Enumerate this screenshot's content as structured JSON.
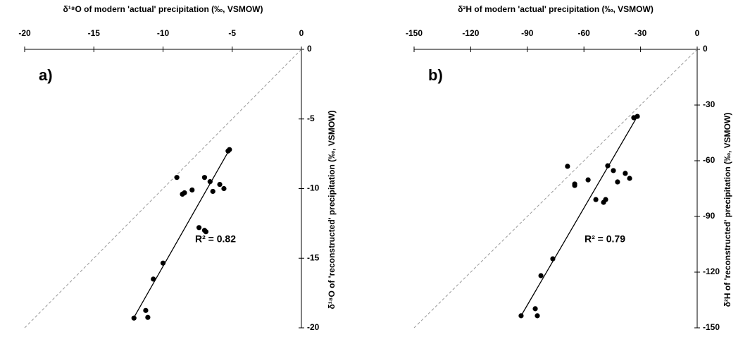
{
  "chart_data": [
    {
      "type": "scatter",
      "panel": "a)",
      "xlabel": "δ¹⁸O of  modern 'actual' precipitation (‰, VSMOW)",
      "ylabel": "δ¹⁸O of 'reconstructed' precipitation (‰, VSMOW)",
      "annotation": "R² = 0.82",
      "xlim": [
        -20,
        0
      ],
      "xticks": [
        -20,
        -15,
        -10,
        -5,
        0
      ],
      "ylim": [
        -20,
        0
      ],
      "yticks": [
        0,
        -5,
        -10,
        -15,
        -20
      ],
      "color": "#000000",
      "one_to_one_line": true,
      "x": [
        -12.1,
        -11.25,
        -11.1,
        -10.7,
        -10.0,
        -9.0,
        -8.6,
        -8.45,
        -7.9,
        -7.4,
        -7.0,
        -6.9,
        -7.0,
        -6.6,
        -6.4,
        -5.9,
        -5.6,
        -5.3,
        -5.2
      ],
      "values": [
        -19.3,
        -18.75,
        -19.25,
        -16.5,
        -15.35,
        -9.2,
        -10.4,
        -10.3,
        -10.1,
        -12.8,
        -13.0,
        -13.1,
        -9.2,
        -9.5,
        -10.2,
        -9.7,
        -10.0,
        -7.3,
        -7.2
      ],
      "fit_line": {
        "x": [
          -12.1,
          -5.2
        ],
        "y": [
          -19.25,
          -7.2
        ]
      }
    },
    {
      "type": "scatter",
      "panel": "b)",
      "xlabel": "δ²H of modern 'actual' precipitation (‰, VSMOW)",
      "ylabel": "δ²H of 'reconstructed' precipitation (‰, VSMOW)",
      "annotation": "R² = 0.79",
      "xlim": [
        -150,
        0
      ],
      "xticks": [
        -150,
        -120,
        -90,
        -60,
        -30,
        0
      ],
      "ylim": [
        -150,
        0
      ],
      "yticks": [
        0,
        -30,
        -60,
        -90,
        -120,
        -150
      ],
      "color": "#000000",
      "one_to_one_line": true,
      "x": [
        -93.3,
        -85.8,
        -84.7,
        -82.8,
        -76.5,
        -68.7,
        -64.9,
        -64.9,
        -57.8,
        -53.7,
        -49.6,
        -48.5,
        -47.4,
        -44.4,
        -42.2,
        -38.1,
        -35.8,
        -33.6,
        -31.7
      ],
      "values": [
        -143.5,
        -139.7,
        -143.5,
        -121.9,
        -112.8,
        -63,
        -72.5,
        -73.3,
        -70.3,
        -80.9,
        -82.4,
        -80.9,
        -62.7,
        -65.3,
        -71.4,
        -66.8,
        -69.5,
        -36.8,
        -36.1
      ],
      "fit_line": {
        "x": [
          -93.3,
          -31.7
        ],
        "y": [
          -143.5,
          -36.1
        ]
      }
    }
  ]
}
